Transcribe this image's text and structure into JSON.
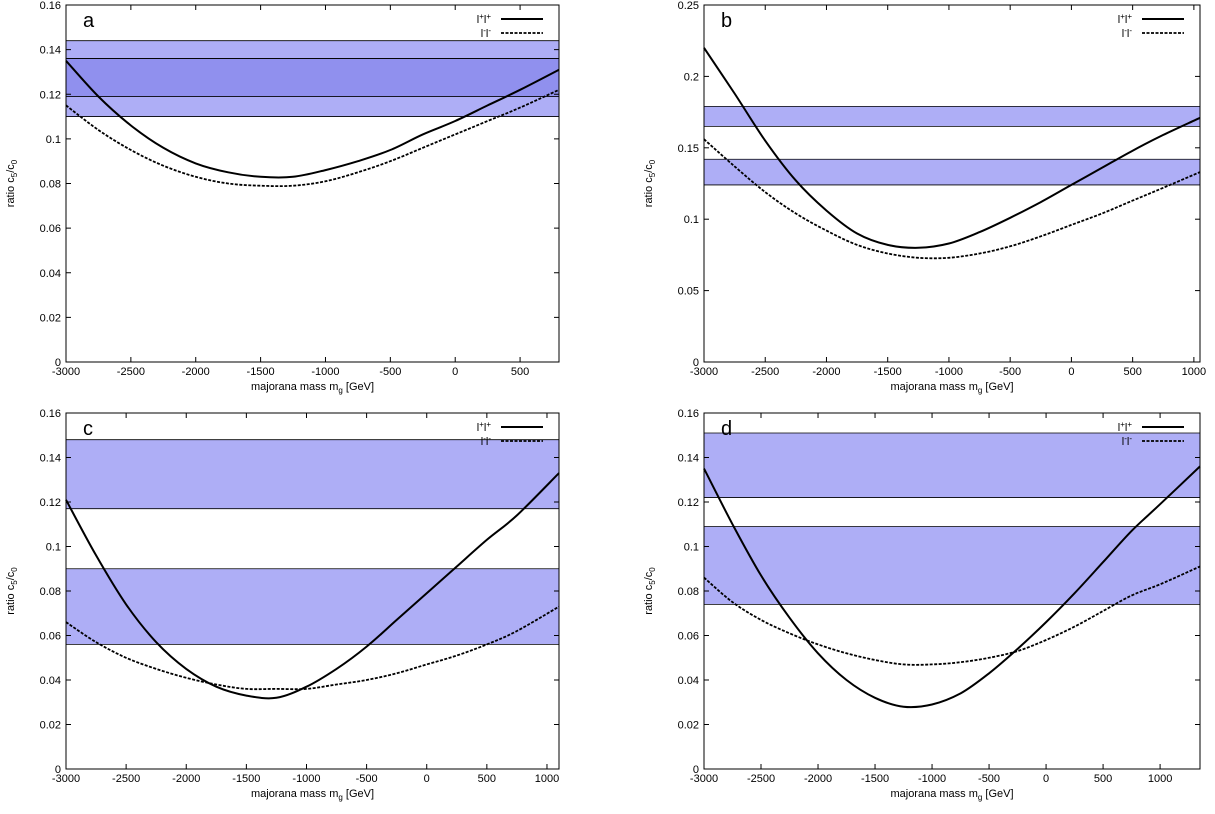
{
  "chart_data": [
    {
      "type": "line",
      "panel_label": "a",
      "xlabel": "majorana mass  m",
      "xlabel_sub": "g",
      "xlabel_unit": " [GeV]",
      "ylabel": "ratio  c",
      "ylabel_sub1": "5",
      "ylabel_mid": "/c",
      "ylabel_sub2": "0",
      "xlim": [
        -3000,
        800
      ],
      "ylim": [
        0,
        0.16
      ],
      "xticks": [
        -3000,
        -2500,
        -2000,
        -1500,
        -1000,
        -500,
        0,
        500
      ],
      "xtick_labels": [
        "-3000",
        "-2500",
        "-2000",
        "-1500",
        "-1000",
        "-500",
        "0",
        "500"
      ],
      "yticks": [
        0,
        0.02,
        0.04,
        0.06,
        0.08,
        0.1,
        0.12,
        0.14,
        0.16
      ],
      "ytick_labels": [
        "0",
        "0.02",
        "0.04",
        "0.06",
        "0.08",
        "0.1",
        "0.12",
        "0.14",
        "0.16"
      ],
      "bands": [
        [
          0.11,
          0.144
        ],
        [
          0.119,
          0.136
        ]
      ],
      "legend_position": "top-right",
      "series": [
        {
          "name": "l+l+",
          "style": "solid",
          "x": [
            -3000,
            -2750,
            -2500,
            -2250,
            -2000,
            -1750,
            -1500,
            -1250,
            -1000,
            -750,
            -500,
            -250,
            0,
            250,
            500,
            800
          ],
          "y": [
            0.135,
            0.119,
            0.106,
            0.096,
            0.089,
            0.085,
            0.083,
            0.083,
            0.086,
            0.09,
            0.095,
            0.102,
            0.108,
            0.115,
            0.122,
            0.131
          ]
        },
        {
          "name": "l-l-",
          "style": "dashed",
          "x": [
            -3000,
            -2750,
            -2500,
            -2250,
            -2000,
            -1750,
            -1500,
            -1250,
            -1000,
            -750,
            -500,
            -250,
            0,
            250,
            500,
            800
          ],
          "y": [
            0.115,
            0.104,
            0.095,
            0.088,
            0.083,
            0.08,
            0.079,
            0.079,
            0.081,
            0.085,
            0.09,
            0.096,
            0.102,
            0.108,
            0.114,
            0.122
          ]
        }
      ]
    },
    {
      "type": "line",
      "panel_label": "b",
      "xlabel": "majorana mass  m",
      "xlabel_sub": "g",
      "xlabel_unit": " [GeV]",
      "ylabel": "ratio  c",
      "ylabel_sub1": "5",
      "ylabel_mid": "/c",
      "ylabel_sub2": "0",
      "xlim": [
        -3000,
        1050
      ],
      "ylim": [
        0,
        0.25
      ],
      "xticks": [
        -3000,
        -2500,
        -2000,
        -1500,
        -1000,
        -500,
        0,
        500,
        1000
      ],
      "xtick_labels": [
        "-3000",
        "-2500",
        "-2000",
        "-1500",
        "-1000",
        "-500",
        "0",
        "500",
        "1000"
      ],
      "yticks": [
        0,
        0.05,
        0.1,
        0.15,
        0.2,
        0.25
      ],
      "ytick_labels": [
        "0",
        "0.05",
        "0.1",
        "0.15",
        "0.2",
        "0.25"
      ],
      "bands": [
        [
          0.165,
          0.179
        ],
        [
          0.124,
          0.142
        ]
      ],
      "legend_position": "top-right",
      "series": [
        {
          "name": "l+l+",
          "style": "solid",
          "x": [
            -3000,
            -2750,
            -2500,
            -2250,
            -2000,
            -1750,
            -1500,
            -1250,
            -1000,
            -750,
            -500,
            -250,
            0,
            250,
            500,
            750,
            1050
          ],
          "y": [
            0.22,
            0.188,
            0.155,
            0.127,
            0.106,
            0.09,
            0.082,
            0.08,
            0.083,
            0.091,
            0.101,
            0.112,
            0.124,
            0.136,
            0.148,
            0.159,
            0.171
          ]
        },
        {
          "name": "l-l-",
          "style": "dashed",
          "x": [
            -3000,
            -2750,
            -2500,
            -2250,
            -2000,
            -1750,
            -1500,
            -1250,
            -1000,
            -750,
            -500,
            -250,
            0,
            250,
            500,
            750,
            1050
          ],
          "y": [
            0.156,
            0.137,
            0.119,
            0.104,
            0.092,
            0.082,
            0.076,
            0.073,
            0.073,
            0.076,
            0.081,
            0.088,
            0.096,
            0.104,
            0.113,
            0.122,
            0.133
          ]
        }
      ]
    },
    {
      "type": "line",
      "panel_label": "c",
      "xlabel": "majorana mass  m",
      "xlabel_sub": "g",
      "xlabel_unit": " [GeV]",
      "ylabel": "ratio  c",
      "ylabel_sub1": "5",
      "ylabel_mid": "/c",
      "ylabel_sub2": "0",
      "xlim": [
        -3000,
        1100
      ],
      "ylim": [
        0,
        0.16
      ],
      "xticks": [
        -3000,
        -2500,
        -2000,
        -1500,
        -1000,
        -500,
        0,
        500,
        1000
      ],
      "xtick_labels": [
        "-3000",
        "-2500",
        "-2000",
        "-1500",
        "-1000",
        "-500",
        "0",
        "500",
        "1000"
      ],
      "yticks": [
        0,
        0.02,
        0.04,
        0.06,
        0.08,
        0.1,
        0.12,
        0.14,
        0.16
      ],
      "ytick_labels": [
        "0",
        "0.02",
        "0.04",
        "0.06",
        "0.08",
        "0.1",
        "0.12",
        "0.14",
        "0.16"
      ],
      "bands": [
        [
          0.117,
          0.148
        ],
        [
          0.056,
          0.09
        ]
      ],
      "legend_position": "top-right",
      "series": [
        {
          "name": "l+l+",
          "style": "solid",
          "x": [
            -3000,
            -2750,
            -2500,
            -2250,
            -2000,
            -1750,
            -1500,
            -1250,
            -1000,
            -750,
            -500,
            -250,
            0,
            250,
            500,
            750,
            1100
          ],
          "y": [
            0.121,
            0.096,
            0.074,
            0.057,
            0.045,
            0.037,
            0.033,
            0.032,
            0.037,
            0.045,
            0.055,
            0.067,
            0.079,
            0.091,
            0.103,
            0.114,
            0.133
          ]
        },
        {
          "name": "l-l-",
          "style": "dashed",
          "x": [
            -3000,
            -2750,
            -2500,
            -2250,
            -2000,
            -1750,
            -1500,
            -1250,
            -1000,
            -750,
            -500,
            -250,
            0,
            250,
            500,
            750,
            1100
          ],
          "y": [
            0.066,
            0.057,
            0.05,
            0.045,
            0.041,
            0.038,
            0.036,
            0.036,
            0.036,
            0.038,
            0.04,
            0.043,
            0.047,
            0.051,
            0.056,
            0.062,
            0.073
          ]
        }
      ]
    },
    {
      "type": "line",
      "panel_label": "d",
      "xlabel": "majorana mass  m",
      "xlabel_sub": "g",
      "xlabel_unit": " [GeV]",
      "ylabel": "ratio  c",
      "ylabel_sub1": "5",
      "ylabel_mid": "/c",
      "ylabel_sub2": "0",
      "xlim": [
        -3000,
        1350
      ],
      "ylim": [
        0,
        0.16
      ],
      "xticks": [
        -3000,
        -2500,
        -2000,
        -1500,
        -1000,
        -500,
        0,
        500,
        1000
      ],
      "xtick_labels": [
        "-3000",
        "-2500",
        "-2000",
        "-1500",
        "-1000",
        "-500",
        "0",
        "500",
        "1000"
      ],
      "yticks": [
        0,
        0.02,
        0.04,
        0.06,
        0.08,
        0.1,
        0.12,
        0.14,
        0.16
      ],
      "ytick_labels": [
        "0",
        "0.02",
        "0.04",
        "0.06",
        "0.08",
        "0.1",
        "0.12",
        "0.14",
        "0.16"
      ],
      "bands": [
        [
          0.122,
          0.151
        ],
        [
          0.074,
          0.109
        ]
      ],
      "legend_position": "top-right",
      "series": [
        {
          "name": "l+l+",
          "style": "solid",
          "x": [
            -3000,
            -2750,
            -2500,
            -2250,
            -2000,
            -1750,
            -1500,
            -1250,
            -1000,
            -750,
            -500,
            -250,
            0,
            250,
            500,
            750,
            1000,
            1350
          ],
          "y": [
            0.135,
            0.11,
            0.087,
            0.068,
            0.052,
            0.04,
            0.032,
            0.028,
            0.029,
            0.034,
            0.043,
            0.054,
            0.066,
            0.079,
            0.093,
            0.107,
            0.119,
            0.136
          ]
        },
        {
          "name": "l-l-",
          "style": "dashed",
          "x": [
            -3000,
            -2750,
            -2500,
            -2250,
            -2000,
            -1750,
            -1500,
            -1250,
            -1000,
            -750,
            -500,
            -250,
            0,
            250,
            500,
            750,
            1000,
            1350
          ],
          "y": [
            0.086,
            0.075,
            0.067,
            0.061,
            0.056,
            0.052,
            0.049,
            0.047,
            0.047,
            0.048,
            0.05,
            0.053,
            0.058,
            0.064,
            0.071,
            0.078,
            0.083,
            0.091
          ]
        }
      ]
    }
  ],
  "legend_labels": {
    "plus_base": "l",
    "plus_sup": "+",
    "minus_base": "l",
    "minus_sup": "-"
  },
  "colors": {
    "band_fill": "#aaaaf5",
    "band_overlap": "#9090ee",
    "band_edge": "#000000",
    "axis": "#000000",
    "curve": "#000000",
    "background": "#ffffff"
  }
}
